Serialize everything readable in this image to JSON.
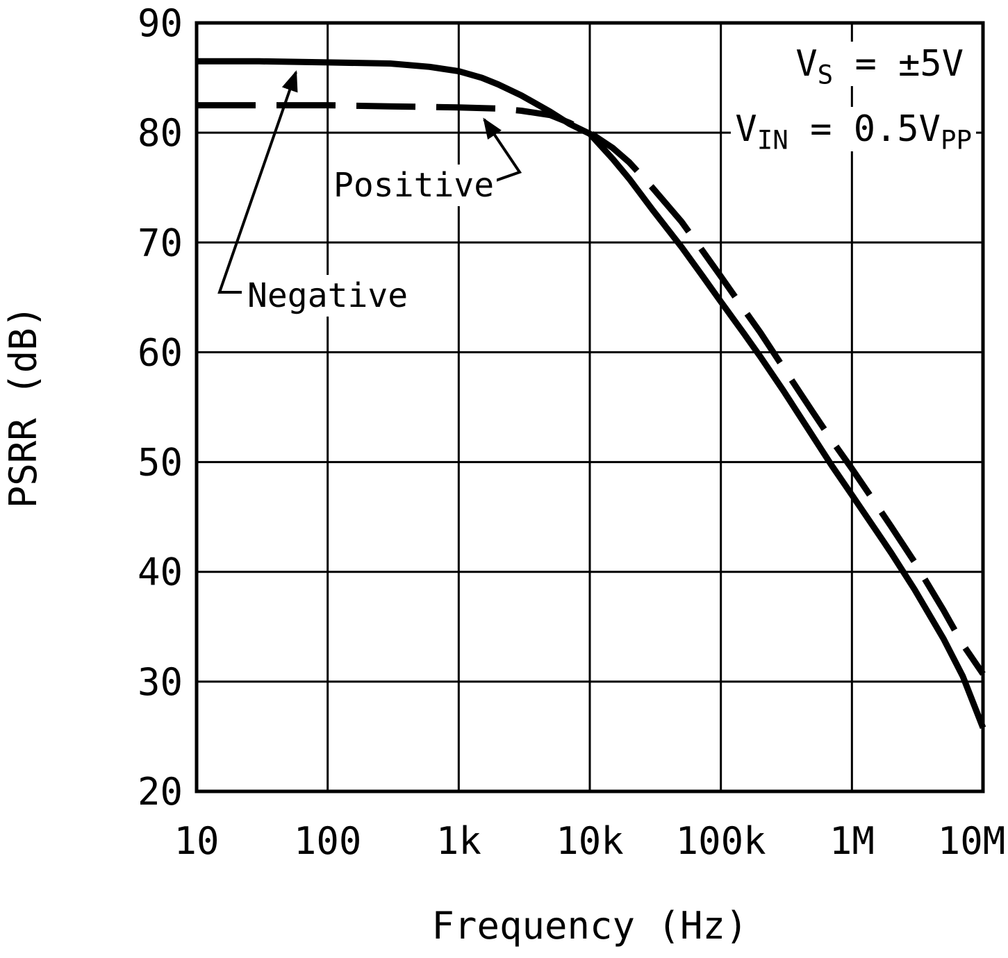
{
  "colors": {
    "foreground": "#000000",
    "background": "#ffffff"
  },
  "labels": {
    "negative": "Negative",
    "positive": "Positive"
  },
  "chart_data": {
    "type": "line",
    "title": "",
    "xlabel": "Frequency (Hz)",
    "ylabel": "PSRR (dB)",
    "x_scale": "log",
    "xlim": [
      10,
      10000000
    ],
    "ylim": [
      20,
      90
    ],
    "grid": true,
    "x_ticks": [
      {
        "value": 10,
        "label": "10"
      },
      {
        "value": 100,
        "label": "100"
      },
      {
        "value": 1000,
        "label": "1k"
      },
      {
        "value": 10000,
        "label": "10k"
      },
      {
        "value": 100000,
        "label": "100k"
      },
      {
        "value": 1000000,
        "label": "1M"
      },
      {
        "value": 10000000,
        "label": "10M"
      }
    ],
    "y_ticks": [
      90,
      80,
      70,
      60,
      50,
      40,
      30,
      20
    ],
    "annotations": {
      "supply": {
        "v": "V",
        "sub": "S",
        "rest": " = ±5V"
      },
      "input": {
        "v": "V",
        "sub": "IN",
        "mid": " = 0.5V",
        "sub2": "PP"
      }
    },
    "series": [
      {
        "name": "Negative",
        "style": "solid",
        "points": [
          [
            10,
            86.5
          ],
          [
            30,
            86.5
          ],
          [
            100,
            86.4
          ],
          [
            300,
            86.3
          ],
          [
            600,
            86.0
          ],
          [
            1000,
            85.6
          ],
          [
            1500,
            85.0
          ],
          [
            2000,
            84.4
          ],
          [
            3000,
            83.4
          ],
          [
            5000,
            81.9
          ],
          [
            7000,
            80.8
          ],
          [
            10000,
            79.9
          ],
          [
            15000,
            77.6
          ],
          [
            20000,
            75.8
          ],
          [
            30000,
            73.0
          ],
          [
            50000,
            69.6
          ],
          [
            70000,
            67.2
          ],
          [
            100000,
            64.6
          ],
          [
            150000,
            61.7
          ],
          [
            200000,
            59.6
          ],
          [
            300000,
            56.5
          ],
          [
            500000,
            52.4
          ],
          [
            700000,
            49.7
          ],
          [
            1000000,
            47.0
          ],
          [
            1500000,
            43.9
          ],
          [
            2000000,
            41.7
          ],
          [
            3000000,
            38.4
          ],
          [
            5000000,
            33.9
          ],
          [
            7000000,
            30.5
          ],
          [
            10000000,
            25.8
          ]
        ]
      },
      {
        "name": "Positive",
        "style": "dashed",
        "points": [
          [
            10,
            82.5
          ],
          [
            100,
            82.5
          ],
          [
            300,
            82.4
          ],
          [
            1000,
            82.3
          ],
          [
            2000,
            82.2
          ],
          [
            3000,
            82.0
          ],
          [
            5000,
            81.6
          ],
          [
            7000,
            80.9
          ],
          [
            10000,
            80.0
          ],
          [
            15000,
            78.6
          ],
          [
            20000,
            77.3
          ],
          [
            30000,
            75.0
          ],
          [
            50000,
            71.9
          ],
          [
            70000,
            69.5
          ],
          [
            100000,
            66.9
          ],
          [
            150000,
            63.9
          ],
          [
            200000,
            61.8
          ],
          [
            300000,
            58.6
          ],
          [
            500000,
            54.6
          ],
          [
            700000,
            52.0
          ],
          [
            1000000,
            49.4
          ],
          [
            1500000,
            46.3
          ],
          [
            2000000,
            44.1
          ],
          [
            3000000,
            40.9
          ],
          [
            5000000,
            36.5
          ],
          [
            7000000,
            33.4
          ],
          [
            10000000,
            30.7
          ]
        ]
      }
    ]
  }
}
